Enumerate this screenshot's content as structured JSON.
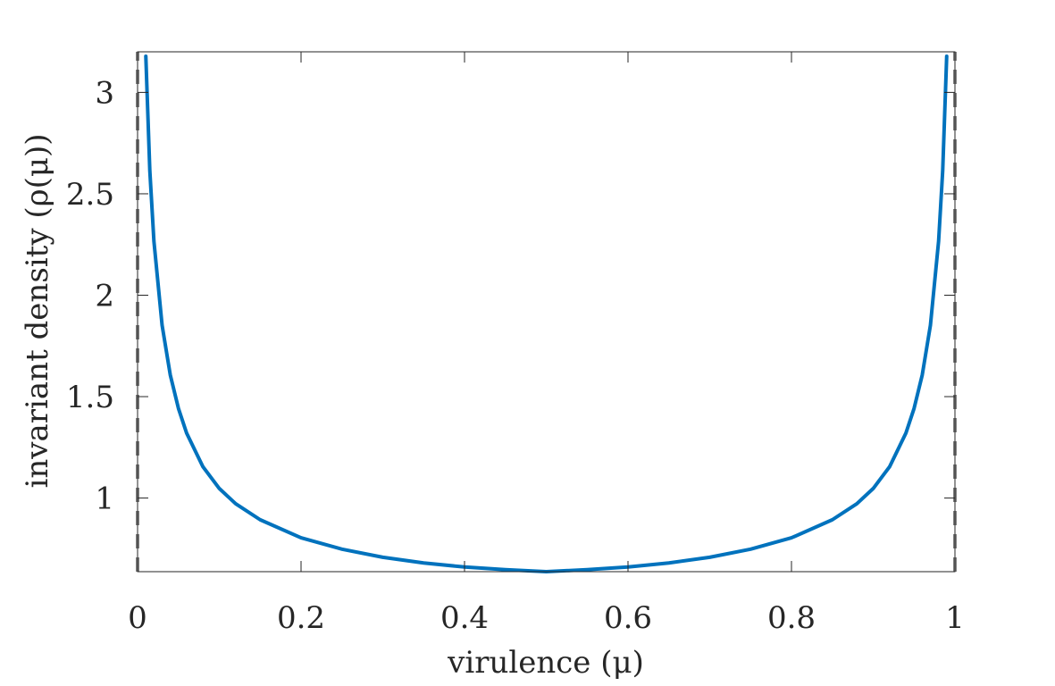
{
  "chart_data": {
    "type": "line",
    "title": "",
    "xlabel": "virulence (μ)",
    "ylabel": "invariant density (ρ(μ))",
    "xlim": [
      0,
      1
    ],
    "ylim": [
      0.637,
      3.2
    ],
    "x_ticks": [
      0,
      0.2,
      0.4,
      0.6,
      0.8,
      1
    ],
    "x_tick_labels": [
      "0",
      "0.2",
      "0.4",
      "0.6",
      "0.8",
      "1"
    ],
    "y_ticks": [
      1,
      1.5,
      2,
      2.5,
      3
    ],
    "y_tick_labels": [
      "1",
      "1.5",
      "2",
      "2.5",
      "3"
    ],
    "grid": false,
    "box": true,
    "series": [
      {
        "style": "solid",
        "color": "#0072BD",
        "x": [
          0.0101,
          0.015,
          0.02,
          0.03,
          0.04,
          0.05,
          0.06,
          0.08,
          0.1,
          0.12,
          0.15,
          0.2,
          0.25,
          0.3,
          0.35,
          0.4,
          0.45,
          0.5,
          0.55,
          0.6,
          0.65,
          0.7,
          0.75,
          0.8,
          0.85,
          0.88,
          0.9,
          0.92,
          0.94,
          0.95,
          0.96,
          0.97,
          0.98,
          0.985,
          0.9899
        ],
        "y": [
          3.178,
          2.613,
          2.266,
          1.852,
          1.607,
          1.442,
          1.32,
          1.154,
          1.047,
          0.972,
          0.893,
          0.804,
          0.748,
          0.708,
          0.68,
          0.66,
          0.647,
          0.637,
          0.647,
          0.66,
          0.68,
          0.708,
          0.748,
          0.804,
          0.893,
          0.972,
          1.047,
          1.154,
          1.32,
          1.442,
          1.607,
          1.852,
          2.266,
          2.613,
          3.178
        ]
      },
      {
        "style": "dashed",
        "color": "#808080",
        "x": [
          0,
          0
        ],
        "y": [
          0.637,
          3.2
        ]
      },
      {
        "style": "dashed",
        "color": "#808080",
        "x": [
          1,
          1
        ],
        "y": [
          0.637,
          3.2
        ]
      }
    ]
  }
}
